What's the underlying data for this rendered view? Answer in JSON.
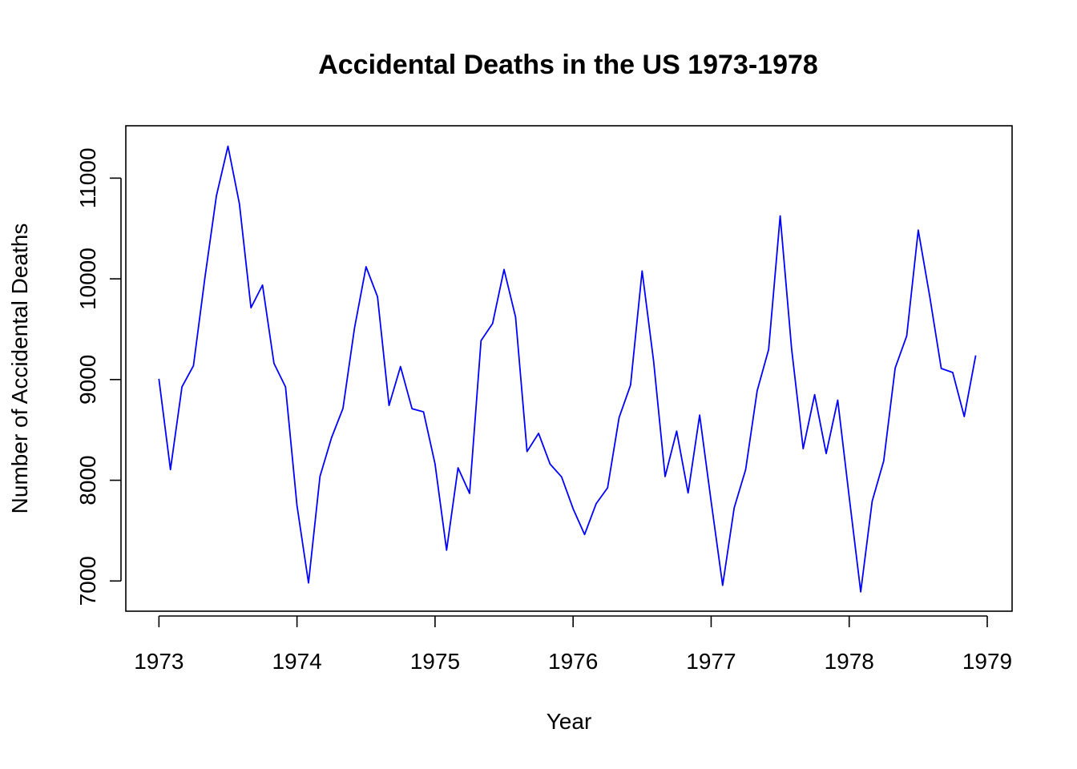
{
  "chart_data": {
    "type": "line",
    "title": "Accidental Deaths in the US 1973-1978",
    "xlabel": "Year",
    "ylabel": "Number of Accidental Deaths",
    "xlim": [
      1972.76,
      1979.18
    ],
    "ylim": [
      6700,
      11520
    ],
    "x_ticks": [
      1973,
      1974,
      1975,
      1976,
      1977,
      1978,
      1979
    ],
    "y_ticks": [
      7000,
      8000,
      9000,
      10000,
      11000
    ],
    "grid": false,
    "legend": "none",
    "series_color": "#0000FF",
    "x_start": 1973,
    "x_step": 0.0833333,
    "series": [
      {
        "values": [
          9007,
          8106,
          8928,
          9137,
          10017,
          10826,
          11317,
          10744,
          9713,
          9938,
          9161,
          8927,
          7750,
          6981,
          8038,
          8422,
          8714,
          9512,
          10120,
          9823,
          8743,
          9129,
          8710,
          8680,
          8162,
          7306,
          8124,
          7870,
          9387,
          9556,
          10093,
          9620,
          8285,
          8466,
          8160,
          8034,
          7717,
          7461,
          7767,
          7925,
          8623,
          8945,
          10078,
          9179,
          8037,
          8488,
          7874,
          8647,
          7792,
          6957,
          7726,
          8106,
          8890,
          9299,
          10625,
          9302,
          8314,
          8850,
          8265,
          8796,
          7836,
          6892,
          7791,
          8192,
          9115,
          9434,
          10484,
          9827,
          9110,
          9070,
          8633,
          9240
        ]
      }
    ]
  }
}
